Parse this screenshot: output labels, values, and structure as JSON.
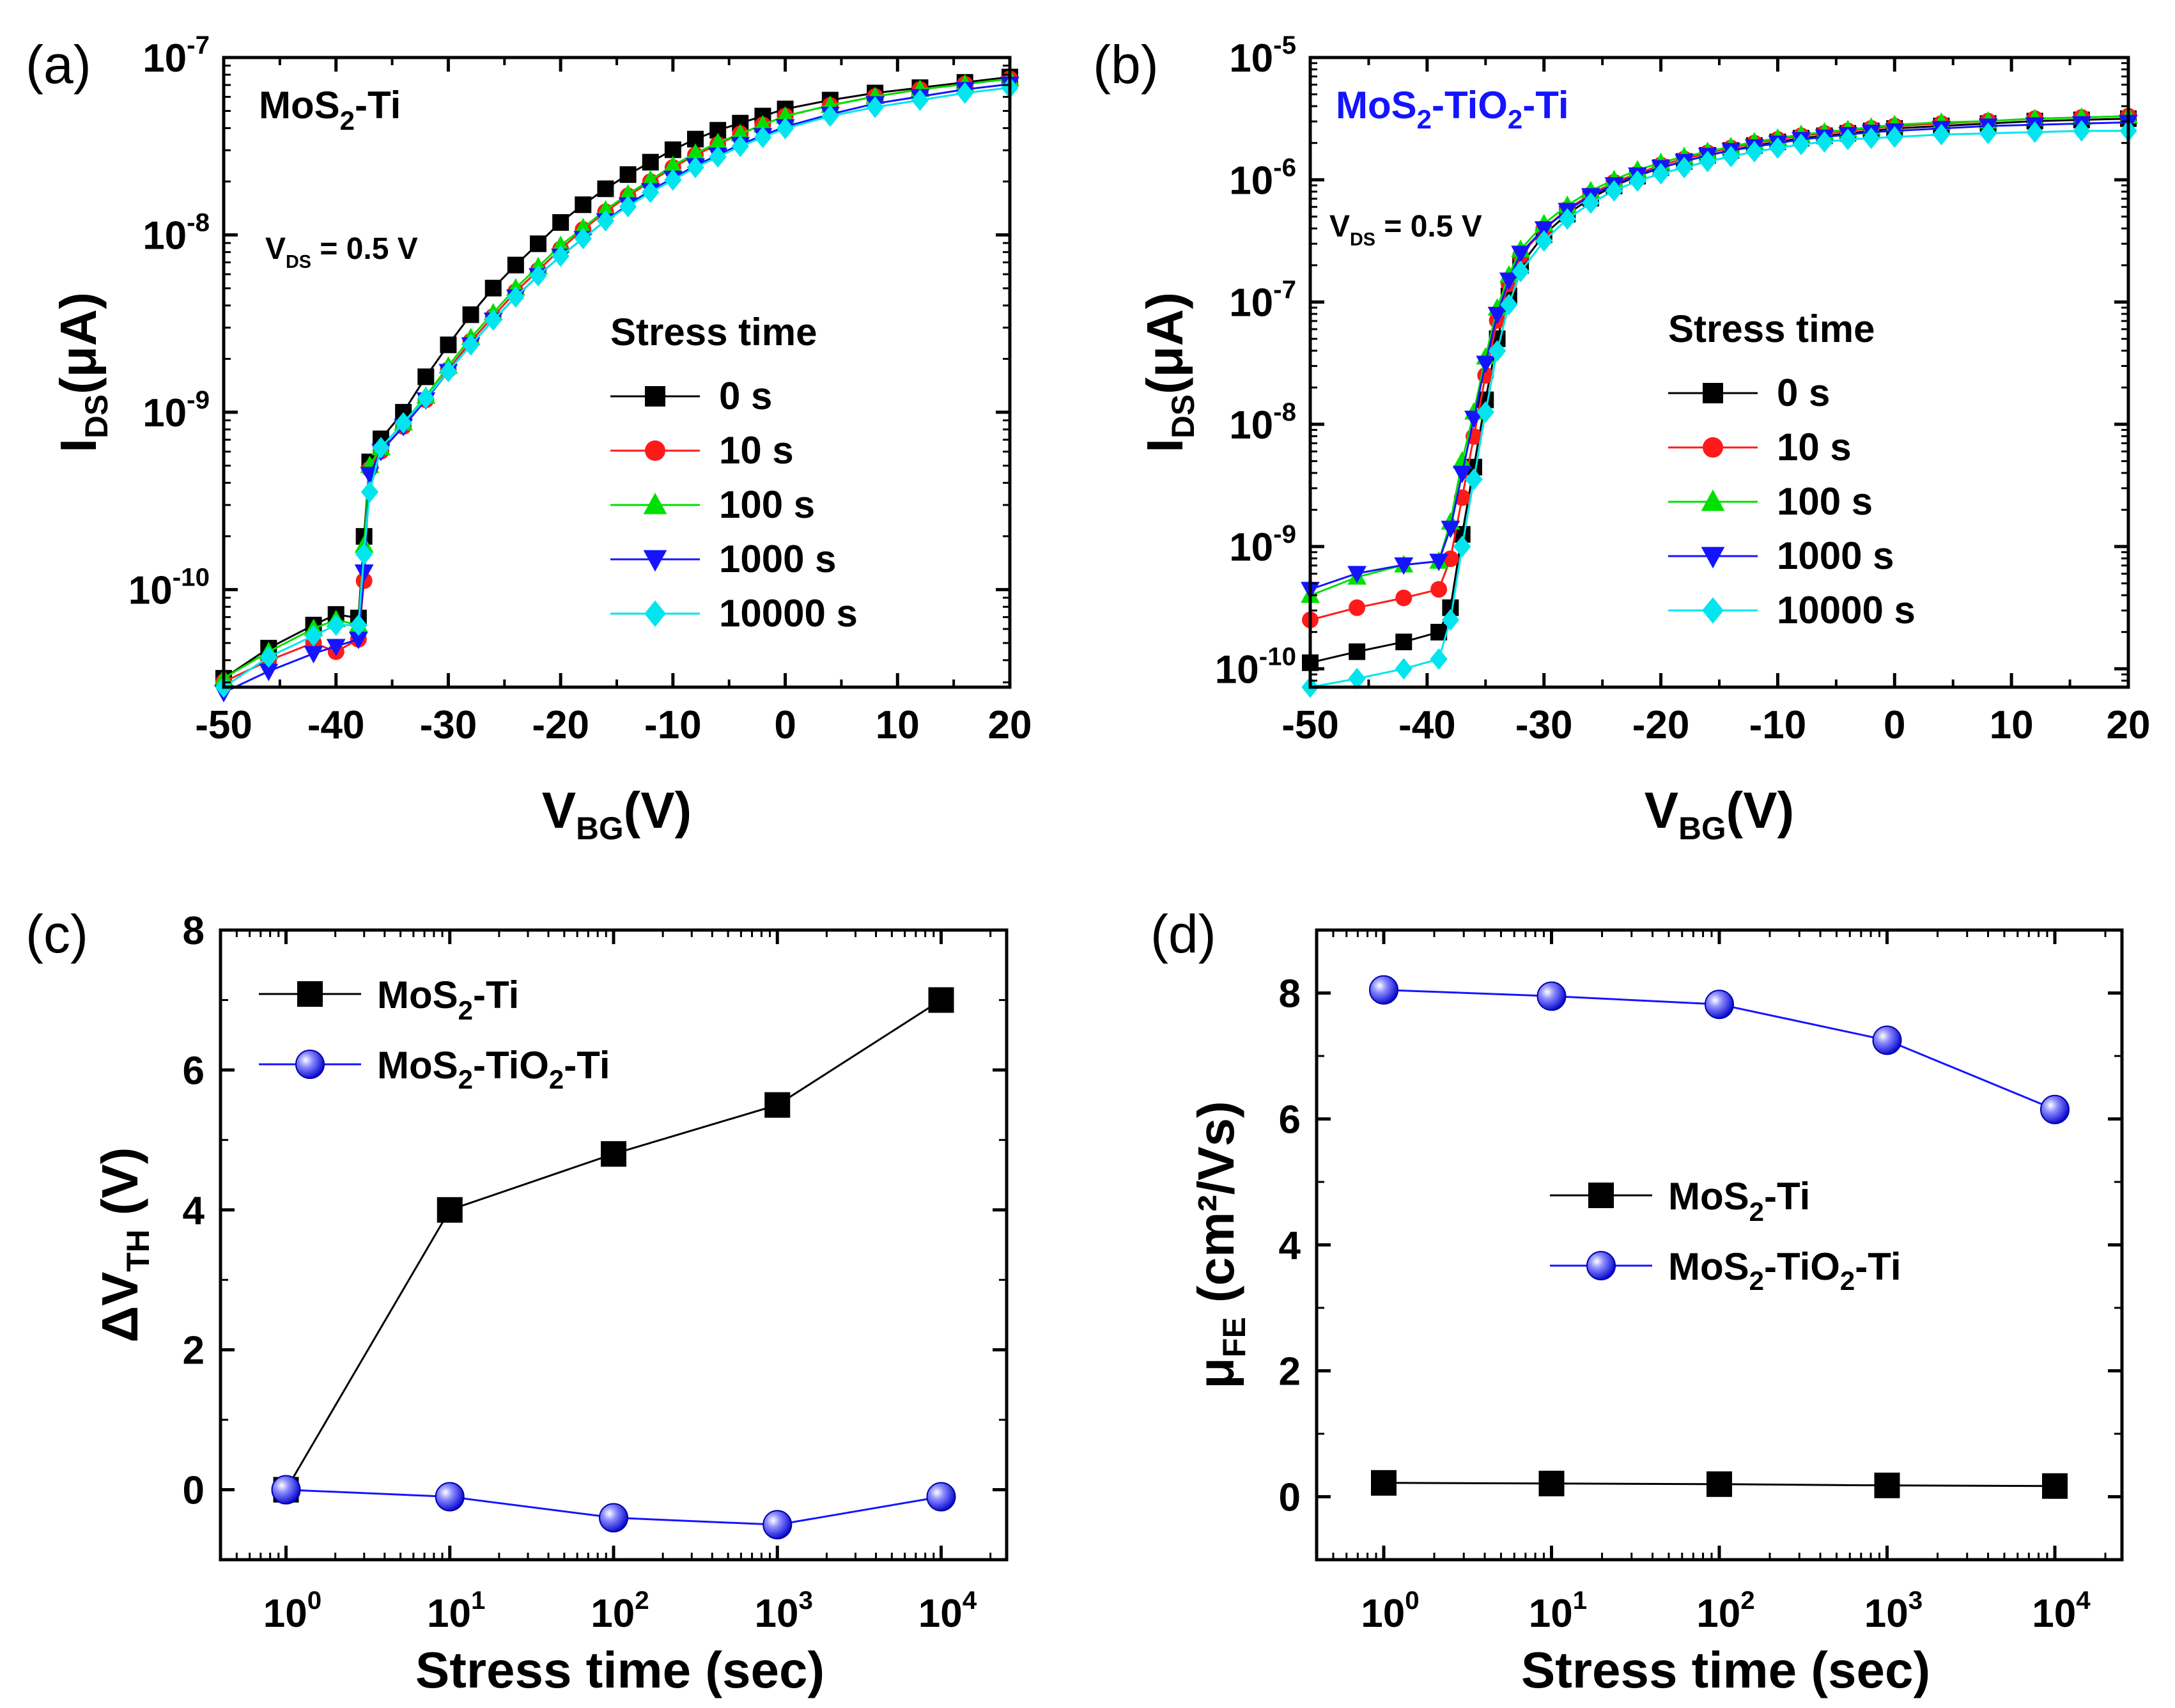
{
  "figure_title": "MoS2 transistor bias-stress characteristics",
  "colors": {
    "black": "#000000",
    "red": "#ff1a1a",
    "green": "#00e000",
    "blue": "#1414ff",
    "cyan": "#00e5ee",
    "text_blue": "#1414ff"
  },
  "chart_data": [
    {
      "panel": "(a)",
      "type": "line",
      "xlim": [
        -50,
        20
      ],
      "ylim_log10": [
        -10.55,
        -7
      ],
      "xticks": [
        -50,
        -40,
        -30,
        -20,
        -10,
        0,
        10,
        20
      ],
      "yticks": [
        {
          "base": "10",
          "exp": "-7"
        },
        {
          "base": "10",
          "exp": "-8"
        },
        {
          "base": "10",
          "exp": "-9"
        },
        {
          "base": "10",
          "exp": "-10"
        }
      ],
      "xlabel_main": "V",
      "xlabel_sub": "BG",
      "xlabel_unit": "(V)",
      "ylabel_main": "I",
      "ylabel_sub": "DS",
      "ylabel_unit": "(μA)",
      "annotation_device": "MoS2-Ti",
      "annotation_vds": "V_DS = 0.5 V",
      "legend_title": "Stress time",
      "series_names": [
        "0 s",
        "10 s",
        "100 s",
        "1000 s",
        "10000 s"
      ],
      "x": [
        -50,
        -46,
        -42,
        -40,
        -38,
        -37.5,
        -37,
        -36,
        -34,
        -32,
        -30,
        -28,
        -26,
        -24,
        -22,
        -20,
        -18,
        -16,
        -14,
        -12,
        -10,
        -8,
        -6,
        -4,
        -2,
        0,
        4,
        8,
        12,
        16,
        20
      ],
      "series": [
        {
          "name": "0 s",
          "marker": "square",
          "log10_values": [
            -10.5,
            -10.33,
            -10.2,
            -10.14,
            -10.16,
            -9.7,
            -9.28,
            -9.15,
            -9.0,
            -8.8,
            -8.62,
            -8.45,
            -8.3,
            -8.17,
            -8.05,
            -7.93,
            -7.83,
            -7.74,
            -7.66,
            -7.59,
            -7.52,
            -7.46,
            -7.41,
            -7.37,
            -7.33,
            -7.29,
            -7.24,
            -7.2,
            -7.17,
            -7.14,
            -7.11
          ]
        },
        {
          "name": "10 s",
          "marker": "circle",
          "log10_values": [
            -10.52,
            -10.4,
            -10.3,
            -10.35,
            -10.28,
            -9.95,
            -9.32,
            -9.22,
            -9.08,
            -8.93,
            -8.76,
            -8.6,
            -8.46,
            -8.32,
            -8.2,
            -8.08,
            -7.97,
            -7.87,
            -7.78,
            -7.7,
            -7.62,
            -7.55,
            -7.49,
            -7.43,
            -7.38,
            -7.33,
            -7.27,
            -7.22,
            -7.18,
            -7.15,
            -7.12
          ]
        },
        {
          "name": "100 s",
          "marker": "triangle-up",
          "log10_values": [
            -10.5,
            -10.35,
            -10.22,
            -10.17,
            -10.2,
            -9.75,
            -9.3,
            -9.2,
            -9.06,
            -8.91,
            -8.74,
            -8.58,
            -8.44,
            -8.3,
            -8.18,
            -8.06,
            -7.96,
            -7.86,
            -7.77,
            -7.69,
            -7.61,
            -7.54,
            -7.48,
            -7.43,
            -7.38,
            -7.33,
            -7.27,
            -7.22,
            -7.18,
            -7.15,
            -7.12
          ]
        },
        {
          "name": "1000 s",
          "marker": "triangle-down",
          "log10_values": [
            -10.58,
            -10.46,
            -10.36,
            -10.32,
            -10.28,
            -9.9,
            -9.35,
            -9.22,
            -9.08,
            -8.93,
            -8.77,
            -8.62,
            -8.48,
            -8.35,
            -8.23,
            -8.12,
            -8.02,
            -7.92,
            -7.83,
            -7.75,
            -7.68,
            -7.61,
            -7.55,
            -7.49,
            -7.44,
            -7.39,
            -7.32,
            -7.26,
            -7.22,
            -7.18,
            -7.15
          ]
        },
        {
          "name": "10000 s",
          "marker": "diamond",
          "log10_values": [
            -10.55,
            -10.38,
            -10.26,
            -10.2,
            -10.2,
            -9.8,
            -9.45,
            -9.2,
            -9.06,
            -8.92,
            -8.77,
            -8.62,
            -8.48,
            -8.35,
            -8.23,
            -8.12,
            -8.02,
            -7.92,
            -7.84,
            -7.76,
            -7.69,
            -7.62,
            -7.56,
            -7.5,
            -7.45,
            -7.4,
            -7.33,
            -7.28,
            -7.24,
            -7.2,
            -7.17
          ]
        }
      ]
    },
    {
      "panel": "(b)",
      "type": "line",
      "xlim": [
        -50,
        20
      ],
      "ylim_log10": [
        -10.15,
        -5
      ],
      "xticks": [
        -50,
        -40,
        -30,
        -20,
        -10,
        0,
        10,
        20
      ],
      "yticks": [
        {
          "base": "10",
          "exp": "-5"
        },
        {
          "base": "10",
          "exp": "-6"
        },
        {
          "base": "10",
          "exp": "-7"
        },
        {
          "base": "10",
          "exp": "-8"
        },
        {
          "base": "10",
          "exp": "-9"
        },
        {
          "base": "10",
          "exp": "-10"
        }
      ],
      "xlabel_main": "V",
      "xlabel_sub": "BG",
      "xlabel_unit": "(V)",
      "ylabel_main": "I",
      "ylabel_sub": "DS",
      "ylabel_unit": "(μA)",
      "annotation_device": "MoS2-TiO2-Ti",
      "annotation_vds": "V_DS = 0.5 V",
      "legend_title": "Stress time",
      "series_names": [
        "0 s",
        "10 s",
        "100 s",
        "1000 s",
        "10000 s"
      ],
      "x": [
        -50,
        -46,
        -42,
        -39,
        -38,
        -37,
        -36,
        -35,
        -34,
        -33,
        -32,
        -30,
        -28,
        -26,
        -24,
        -22,
        -20,
        -18,
        -16,
        -14,
        -12,
        -10,
        -8,
        -6,
        -4,
        -2,
        0,
        4,
        8,
        12,
        16,
        20
      ],
      "series": [
        {
          "name": "0 s",
          "marker": "square",
          "log10_values": [
            -9.95,
            -9.86,
            -9.78,
            -9.7,
            -9.5,
            -8.9,
            -8.35,
            -7.8,
            -7.3,
            -6.95,
            -6.7,
            -6.45,
            -6.28,
            -6.15,
            -6.05,
            -5.97,
            -5.9,
            -5.85,
            -5.8,
            -5.76,
            -5.72,
            -5.69,
            -5.66,
            -5.64,
            -5.62,
            -5.6,
            -5.58,
            -5.56,
            -5.54,
            -5.52,
            -5.51,
            -5.5
          ]
        },
        {
          "name": "10 s",
          "marker": "circle",
          "log10_values": [
            -9.6,
            -9.5,
            -9.42,
            -9.35,
            -9.1,
            -8.6,
            -8.1,
            -7.6,
            -7.15,
            -6.85,
            -6.62,
            -6.4,
            -6.24,
            -6.12,
            -6.02,
            -5.95,
            -5.88,
            -5.83,
            -5.78,
            -5.74,
            -5.7,
            -5.67,
            -5.64,
            -5.62,
            -5.6,
            -5.58,
            -5.56,
            -5.54,
            -5.52,
            -5.5,
            -5.49,
            -5.48
          ]
        },
        {
          "name": "100 s",
          "marker": "triangle-up",
          "log10_values": [
            -9.4,
            -9.25,
            -9.15,
            -9.12,
            -8.8,
            -8.3,
            -7.9,
            -7.45,
            -7.05,
            -6.78,
            -6.57,
            -6.36,
            -6.21,
            -6.09,
            -6.0,
            -5.92,
            -5.86,
            -5.81,
            -5.77,
            -5.73,
            -5.69,
            -5.66,
            -5.63,
            -5.61,
            -5.59,
            -5.57,
            -5.55,
            -5.53,
            -5.52,
            -5.5,
            -5.49,
            -5.48
          ]
        },
        {
          "name": "1000 s",
          "marker": "triangle-down",
          "log10_values": [
            -9.35,
            -9.22,
            -9.15,
            -9.12,
            -8.85,
            -8.4,
            -7.95,
            -7.5,
            -7.1,
            -6.82,
            -6.6,
            -6.4,
            -6.25,
            -6.13,
            -6.04,
            -5.96,
            -5.9,
            -5.85,
            -5.8,
            -5.76,
            -5.73,
            -5.7,
            -5.67,
            -5.65,
            -5.63,
            -5.61,
            -5.6,
            -5.58,
            -5.56,
            -5.55,
            -5.54,
            -5.53
          ]
        },
        {
          "name": "10000 s",
          "marker": "diamond",
          "log10_values": [
            -10.15,
            -10.08,
            -10.0,
            -9.92,
            -9.6,
            -9.0,
            -8.45,
            -7.9,
            -7.4,
            -7.02,
            -6.75,
            -6.5,
            -6.32,
            -6.19,
            -6.09,
            -6.01,
            -5.95,
            -5.9,
            -5.85,
            -5.81,
            -5.77,
            -5.74,
            -5.71,
            -5.69,
            -5.67,
            -5.66,
            -5.65,
            -5.63,
            -5.62,
            -5.61,
            -5.6,
            -5.6
          ]
        }
      ]
    },
    {
      "panel": "(c)",
      "type": "line",
      "x_log10": [
        0,
        1,
        2,
        3,
        4
      ],
      "xlim_log10": [
        -0.4,
        4.4
      ],
      "ylim": [
        -1,
        8
      ],
      "yticks": [
        0,
        2,
        4,
        6,
        8
      ],
      "xticks": [
        {
          "base": "10",
          "exp": "0"
        },
        {
          "base": "10",
          "exp": "1"
        },
        {
          "base": "10",
          "exp": "2"
        },
        {
          "base": "10",
          "exp": "3"
        },
        {
          "base": "10",
          "exp": "4"
        }
      ],
      "xlabel": "Stress time (sec)",
      "ylabel_main": "ΔV",
      "ylabel_sub": "TH",
      "ylabel_unit": " (V)",
      "series": [
        {
          "name": "MoS2-Ti",
          "marker": "square",
          "values": [
            0,
            4,
            4.8,
            5.5,
            7
          ]
        },
        {
          "name": "MoS2-TiO2-Ti",
          "marker": "sphere",
          "values": [
            0,
            -0.1,
            -0.4,
            -0.5,
            -0.1
          ]
        }
      ]
    },
    {
      "panel": "(d)",
      "type": "line",
      "x_log10": [
        0,
        1,
        2,
        3,
        4
      ],
      "xlim_log10": [
        -0.4,
        4.4
      ],
      "ylim": [
        -1,
        9
      ],
      "yticks": [
        0,
        2,
        4,
        6,
        8
      ],
      "xticks": [
        {
          "base": "10",
          "exp": "0"
        },
        {
          "base": "10",
          "exp": "1"
        },
        {
          "base": "10",
          "exp": "2"
        },
        {
          "base": "10",
          "exp": "3"
        },
        {
          "base": "10",
          "exp": "4"
        }
      ],
      "xlabel": "Stress time (sec)",
      "ylabel_main": "μ",
      "ylabel_sub": "FE",
      "ylabel_unit": " (cm²/Vs)",
      "series": [
        {
          "name": "MoS2-Ti",
          "marker": "square",
          "values": [
            0.22,
            0.21,
            0.2,
            0.18,
            0.17
          ]
        },
        {
          "name": "MoS2-TiO2-Ti",
          "marker": "sphere",
          "values": [
            8.05,
            7.95,
            7.82,
            7.25,
            6.15
          ]
        }
      ]
    }
  ]
}
